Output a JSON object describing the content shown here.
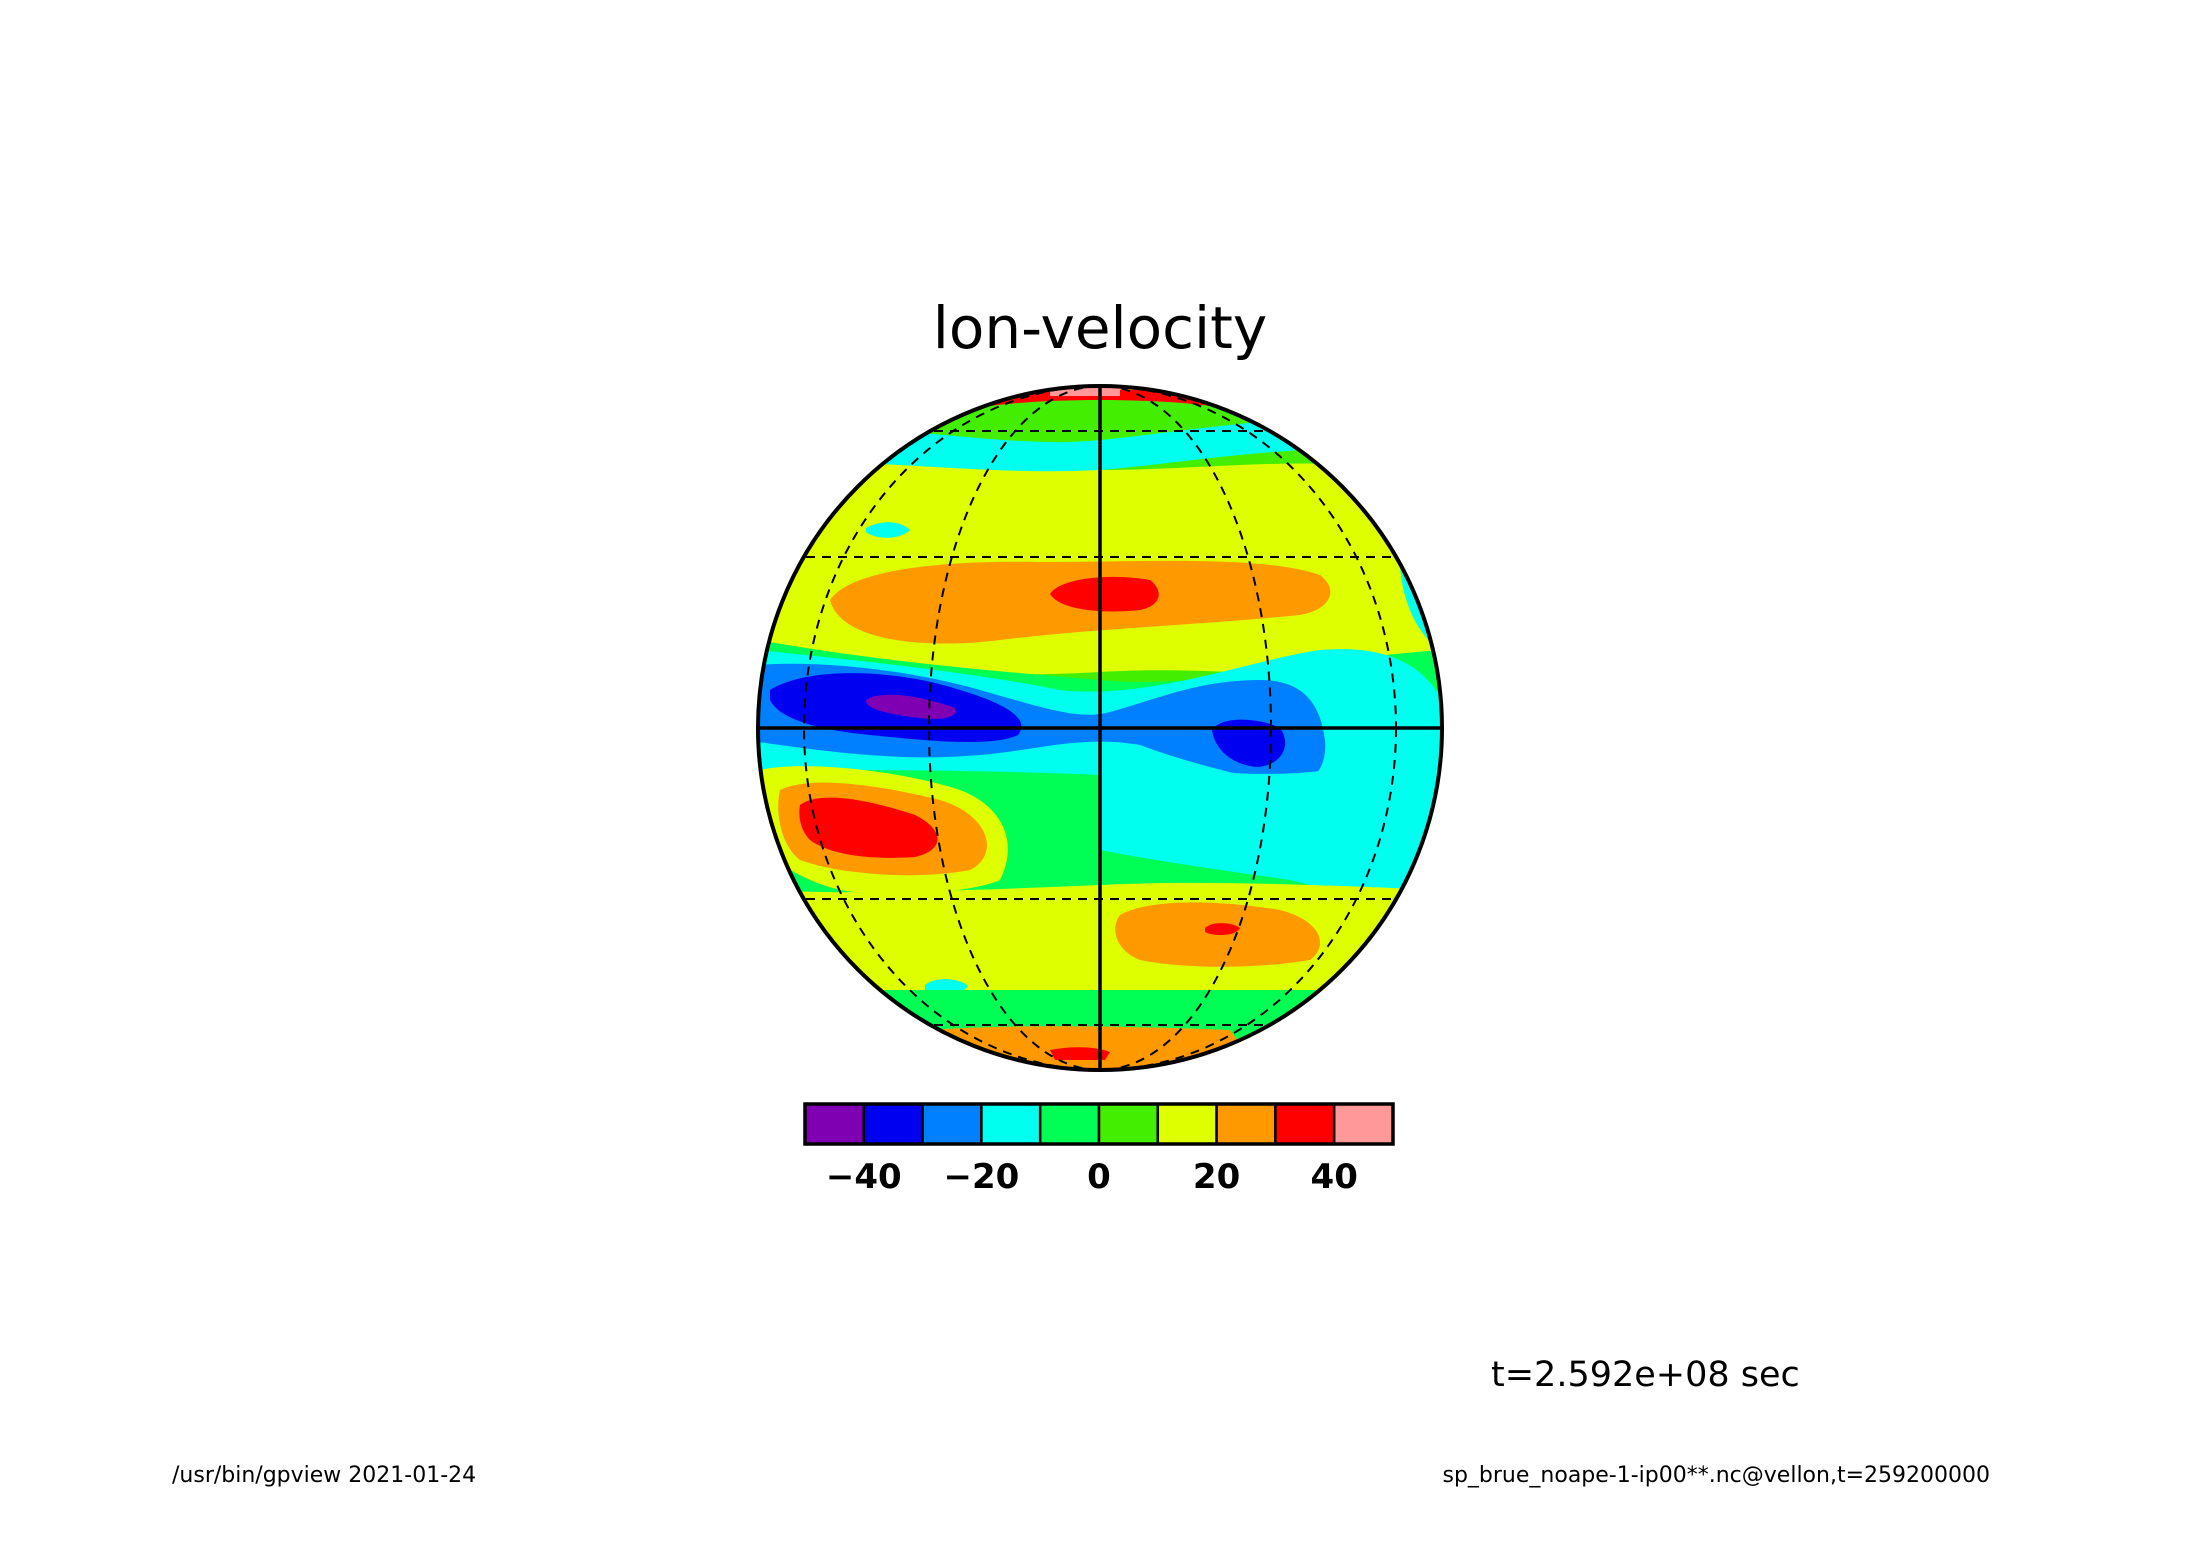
{
  "title": "lon-velocity",
  "time_label": "t=2.592e+08 sec",
  "footer": {
    "left": "/usr/bin/gpview  2021-01-24",
    "right": "sp_brue_noape-1-ip00**.nc@vellon,t=259200000"
  },
  "colorbar": {
    "colors": [
      "#7f00b2",
      "#0000f0",
      "#0080ff",
      "#00ffee",
      "#00ff55",
      "#44ee00",
      "#ddff00",
      "#ff9900",
      "#ff0000",
      "#ff9999"
    ],
    "boundaries": [
      -50,
      -40,
      -30,
      -20,
      -10,
      0,
      10,
      20,
      30,
      40,
      50
    ],
    "tick_values": [
      -40,
      -20,
      0,
      20,
      40
    ],
    "tick_labels": [
      "−40",
      "−20",
      "0",
      "20",
      "40"
    ]
  },
  "map": {
    "projection": "orthographic",
    "field": "lon-velocity",
    "graticule_latitudes": [
      -60,
      0,
      60,
      90
    ],
    "graticule_longitudes": [
      -60,
      0,
      60
    ]
  },
  "chart_data": {
    "type": "heatmap",
    "title": "lon-velocity",
    "colorbar_range": [
      -50,
      50
    ],
    "levels": [
      -40,
      -30,
      -20,
      -10,
      0,
      10,
      20,
      30,
      40
    ],
    "colorbar_ticks": [
      -40,
      -20,
      0,
      20,
      40
    ],
    "annotation": "t=2.592e+08 sec"
  }
}
